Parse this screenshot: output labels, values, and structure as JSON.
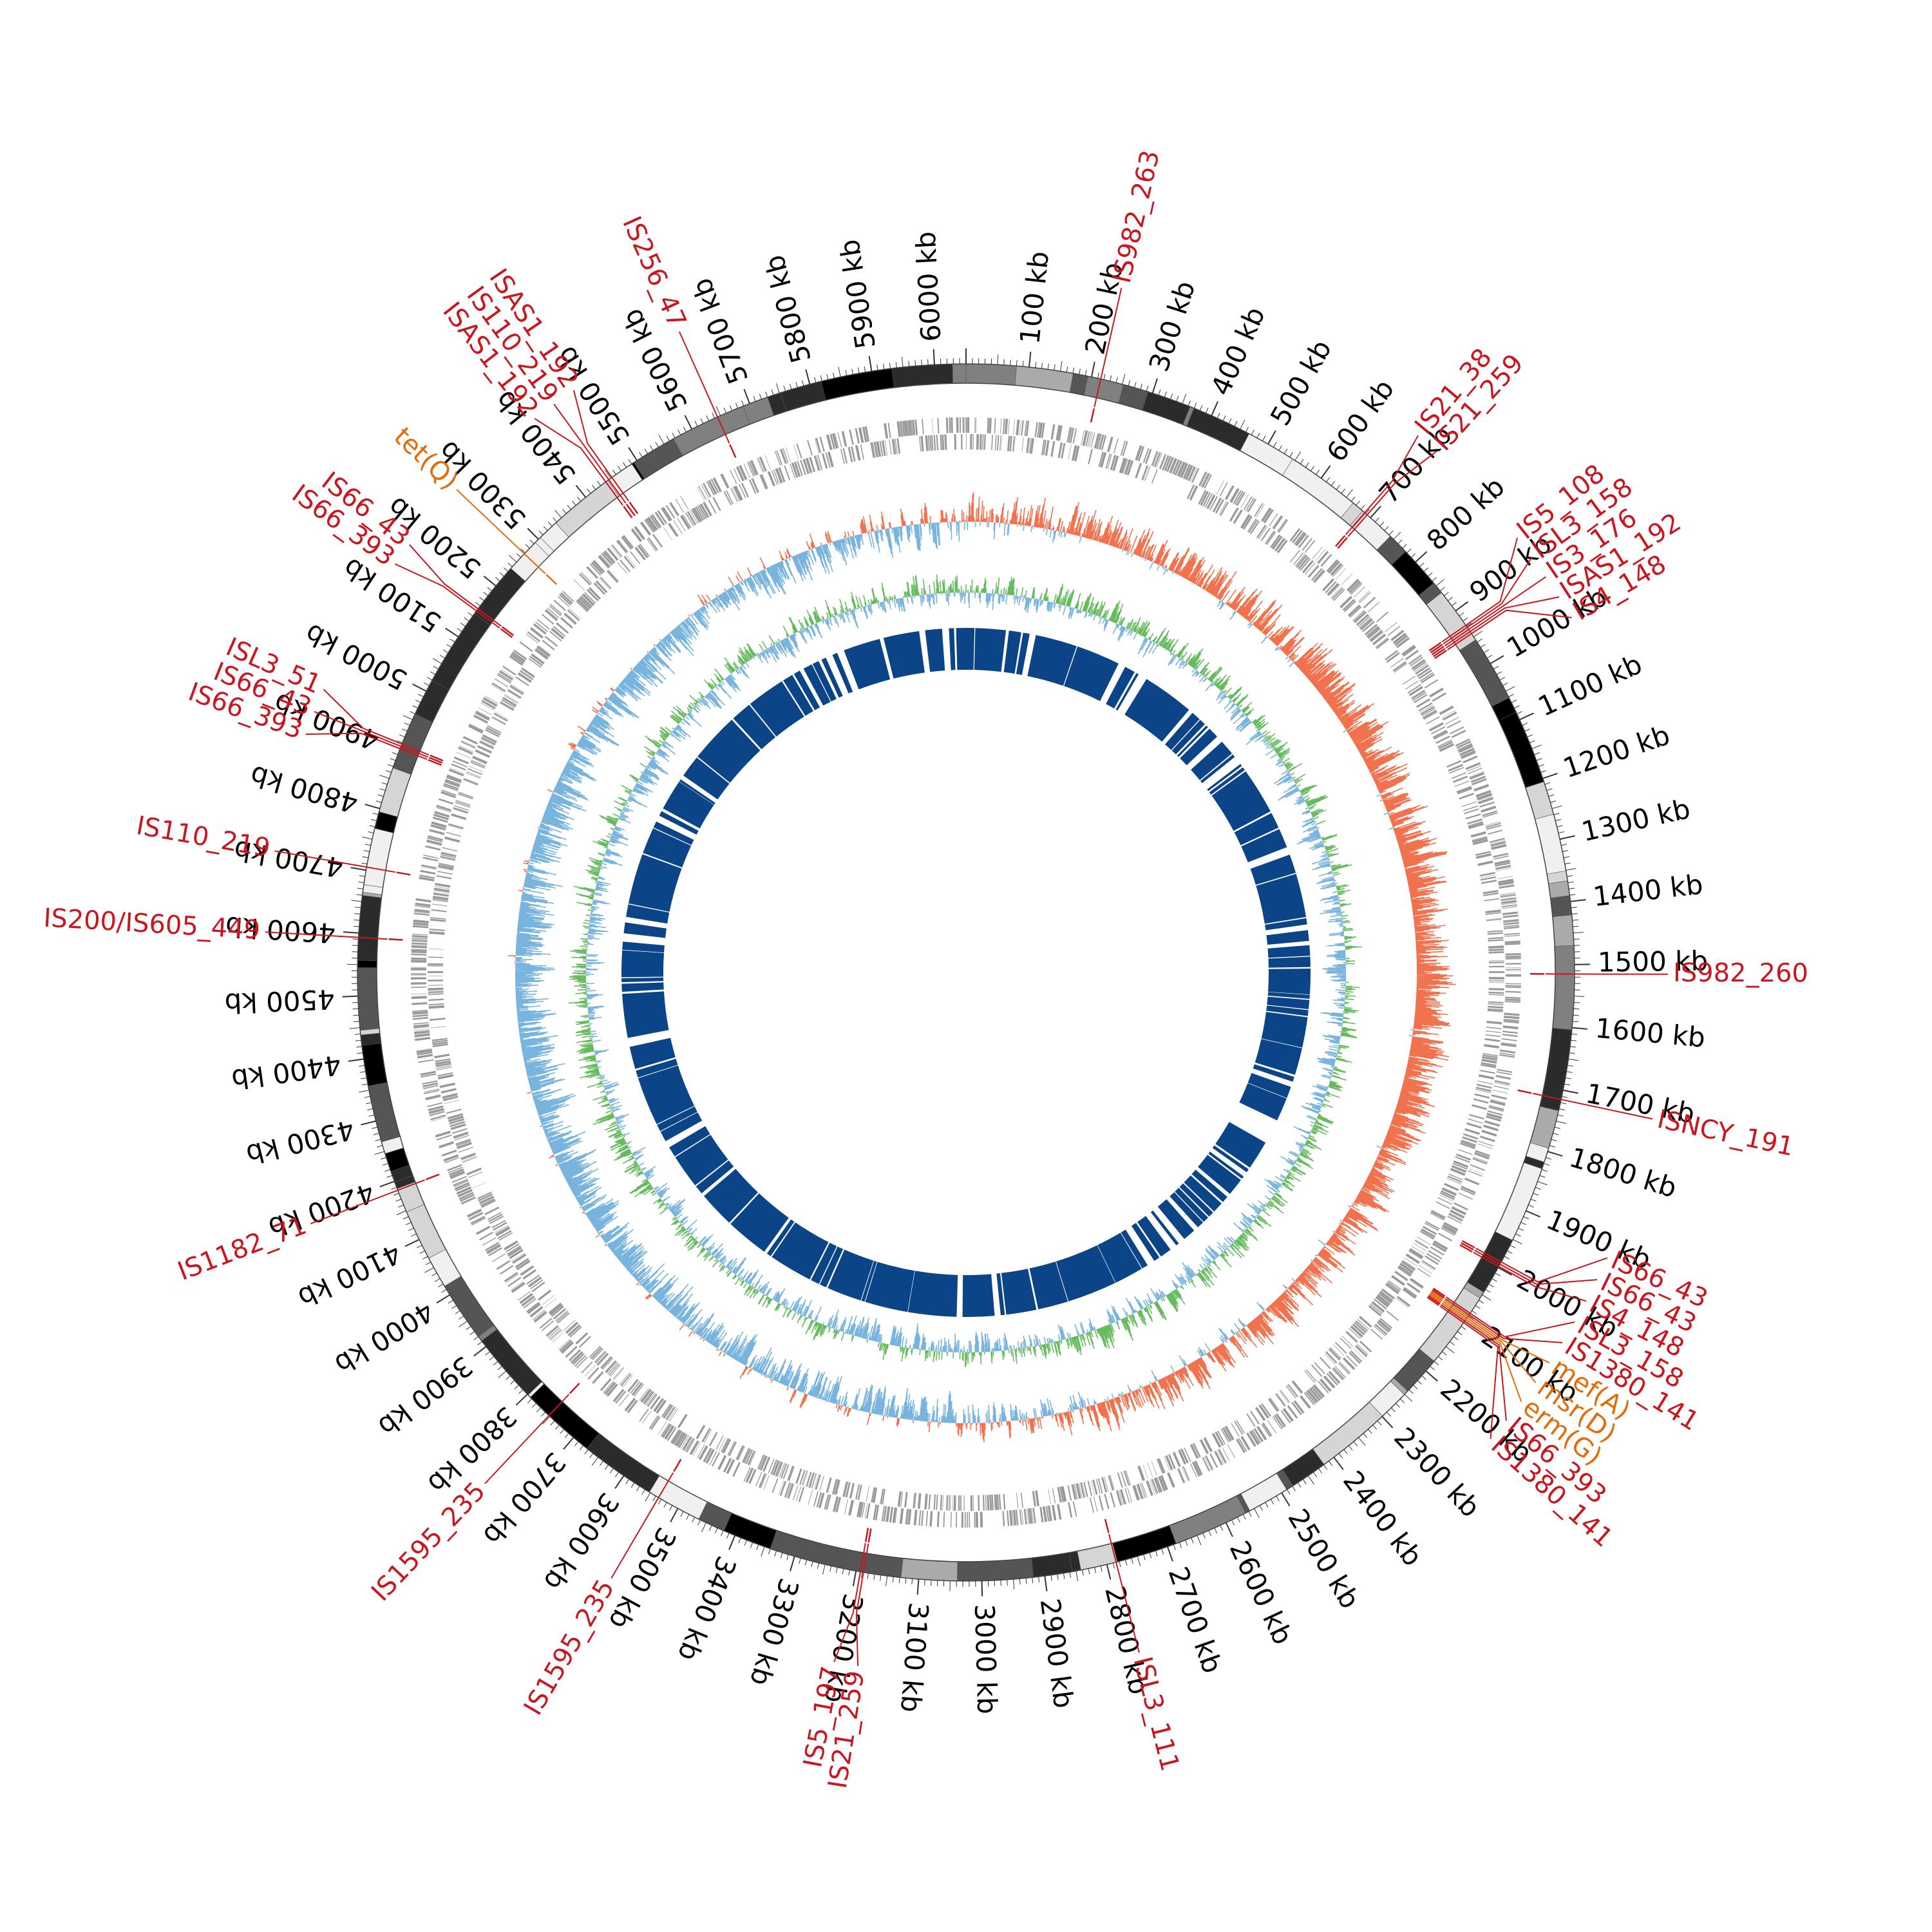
{
  "genome": {
    "length_kb": 6050,
    "tick_step_kb": 100,
    "tick_unit": "kb"
  },
  "colors": {
    "is_label": "#c8171e",
    "gene_label": "#e36c0a",
    "blast_ring": "#0b4587",
    "gc_skew_positive": "#f0724e",
    "gc_skew_negative": "#78b4de",
    "gc_content_positive": "#66bb5e",
    "gc_content_negative": "#78b4de",
    "gene_ring": "#999999"
  },
  "annotations": [
    {
      "label": "IS982_263",
      "kb": 215,
      "type": "IS"
    },
    {
      "label": "IS21_38",
      "kb": 688,
      "type": "IS"
    },
    {
      "label": "IS21_259",
      "kb": 693,
      "type": "IS"
    },
    {
      "label": "IS5_108",
      "kb": 928,
      "type": "IS"
    },
    {
      "label": "ISL3_158",
      "kb": 932,
      "type": "IS"
    },
    {
      "label": "IS3_176",
      "kb": 936,
      "type": "IS"
    },
    {
      "label": "ISAS1_192",
      "kb": 940,
      "type": "IS"
    },
    {
      "label": "IS4_148",
      "kb": 944,
      "type": "IS"
    },
    {
      "label": "IS982_260",
      "kb": 1515,
      "type": "IS"
    },
    {
      "label": "ISNCY_191",
      "kb": 1715,
      "type": "IS"
    },
    {
      "label": "IS66_43",
      "kb": 1990,
      "type": "IS"
    },
    {
      "label": "IS66_43",
      "kb": 1994,
      "type": "IS"
    },
    {
      "label": "IS4_148",
      "kb": 1998,
      "type": "IS"
    },
    {
      "label": "ISL3_158",
      "kb": 2085,
      "type": "IS"
    },
    {
      "label": "IS1380_141",
      "kb": 2088,
      "type": "IS"
    },
    {
      "label": "mef(A)",
      "kb": 2091,
      "type": "gene"
    },
    {
      "label": "msr(D)",
      "kb": 2094,
      "type": "gene"
    },
    {
      "label": "erm(G)",
      "kb": 2097,
      "type": "gene"
    },
    {
      "label": "IS66_393",
      "kb": 2100,
      "type": "IS"
    },
    {
      "label": "IS1380_141",
      "kb": 2103,
      "type": "IS"
    },
    {
      "label": "ISL3_111",
      "kb": 2785,
      "type": "IS"
    },
    {
      "label": "IS21_259",
      "kb": 3188,
      "type": "IS"
    },
    {
      "label": "IS5_197",
      "kb": 3193,
      "type": "IS"
    },
    {
      "label": "IS1595_235",
      "kb": 3535,
      "type": "IS"
    },
    {
      "label": "IS1595_235",
      "kb": 3752,
      "type": "IS"
    },
    {
      "label": "IS1182_71",
      "kb": 4185,
      "type": "IS"
    },
    {
      "label": "IS200/IS605_449",
      "kb": 4593,
      "type": "IS"
    },
    {
      "label": "IS110_219",
      "kb": 4705,
      "type": "IS"
    },
    {
      "label": "IS66_393",
      "kb": 4900,
      "type": "IS"
    },
    {
      "label": "IS66_43",
      "kb": 4904,
      "type": "IS"
    },
    {
      "label": "ISL3_51",
      "kb": 4908,
      "type": "IS"
    },
    {
      "label": "IS66_393",
      "kb": 5150,
      "type": "IS"
    },
    {
      "label": "IS66_43",
      "kb": 5154,
      "type": "IS"
    },
    {
      "label": "tet(Q)",
      "kb": 5268,
      "type": "gene"
    },
    {
      "label": "ISAS1_192",
      "kb": 5440,
      "type": "IS"
    },
    {
      "label": "IS110_219",
      "kb": 5446,
      "type": "IS"
    },
    {
      "label": "ISAS1_192",
      "kb": 5452,
      "type": "IS"
    },
    {
      "label": "IS256_47",
      "kb": 5645,
      "type": "IS"
    }
  ]
}
